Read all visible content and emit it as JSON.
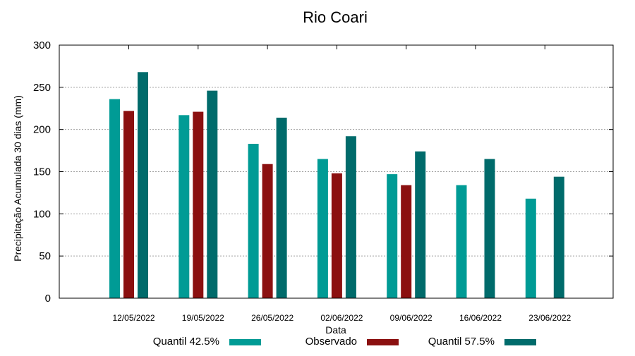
{
  "chart_data": {
    "type": "bar",
    "title": "Rio Coari",
    "xlabel": "Data",
    "ylabel": "Precipitação Acumulada 30 dias (mm)",
    "ylim": [
      0,
      300
    ],
    "yticks": [
      0,
      50,
      100,
      150,
      200,
      250,
      300
    ],
    "grid": true,
    "legend_position": "bottom",
    "categories": [
      "12/05/2022",
      "19/05/2022",
      "26/05/2022",
      "02/06/2022",
      "09/06/2022",
      "16/06/2022",
      "23/06/2022"
    ],
    "series": [
      {
        "name": "Quantil 42.5%",
        "color": "#009b95",
        "values": [
          236,
          217,
          183,
          165,
          147,
          134,
          118
        ]
      },
      {
        "name": "Observado",
        "color": "#8b1010",
        "values": [
          222,
          221,
          159,
          148,
          134,
          null,
          null
        ]
      },
      {
        "name": "Quantil 57.5%",
        "color": "#006b6b",
        "values": [
          268,
          246,
          214,
          192,
          174,
          165,
          144
        ]
      }
    ]
  }
}
